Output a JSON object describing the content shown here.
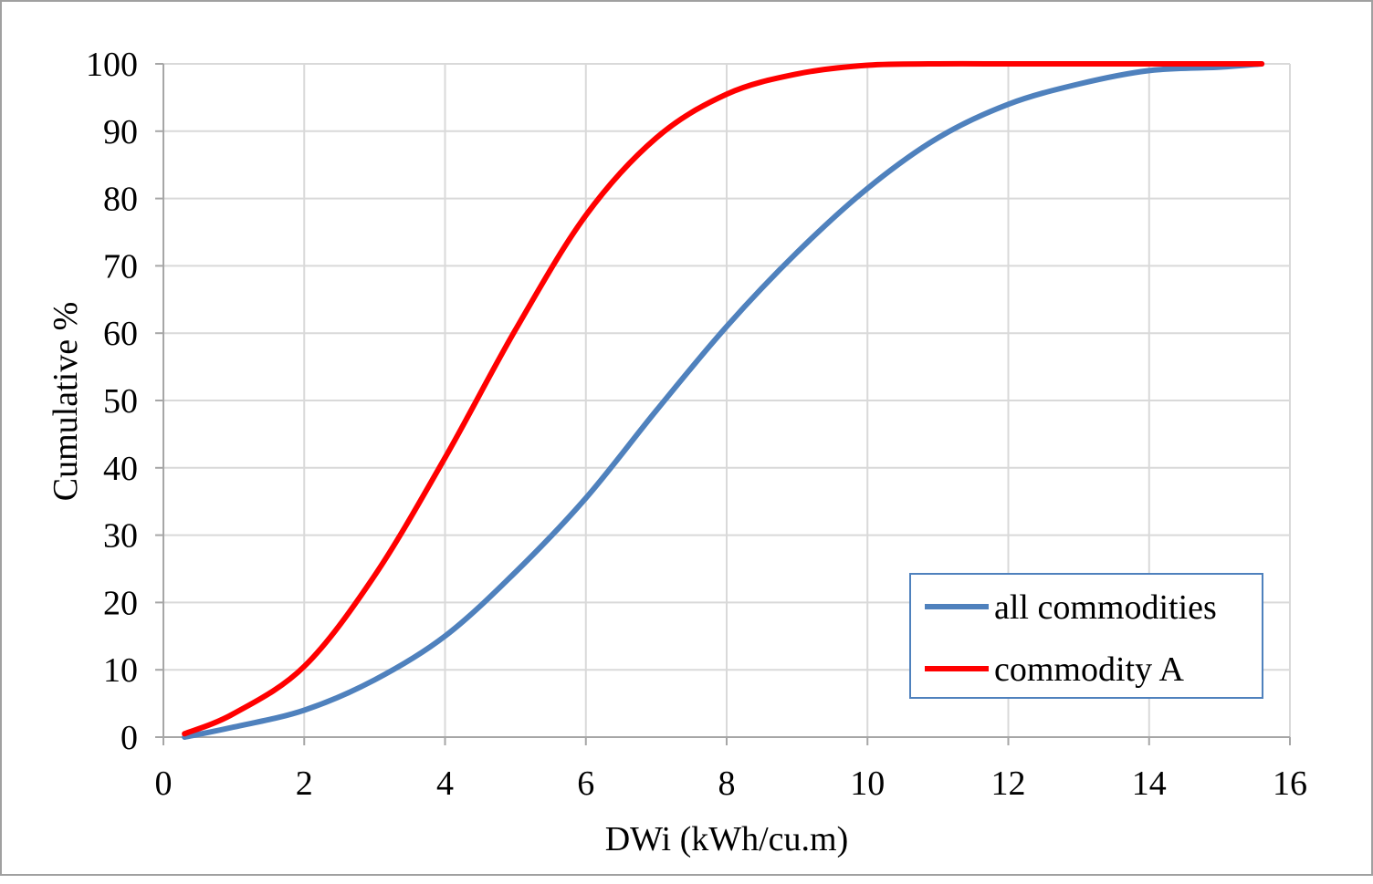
{
  "chart_data": {
    "type": "line",
    "title": "",
    "xlabel": "DWi (kWh/cu.m)",
    "ylabel": "Cumulative %",
    "xlim": [
      0,
      16
    ],
    "ylim": [
      0,
      100
    ],
    "x_ticks": [
      0,
      2,
      4,
      6,
      8,
      10,
      12,
      14,
      16
    ],
    "y_ticks": [
      0,
      10,
      20,
      30,
      40,
      50,
      60,
      70,
      80,
      90,
      100
    ],
    "x_tick_labels": [
      "0",
      "2",
      "4",
      "6",
      "8",
      "10",
      "12",
      "14",
      "16"
    ],
    "y_tick_labels": [
      "0",
      "10",
      "20",
      "30",
      "40",
      "50",
      "60",
      "70",
      "80",
      "90",
      "100"
    ],
    "grid": true,
    "legend_position": "bottom-right",
    "series": [
      {
        "name": "all commodities",
        "color": "#4f81bd",
        "x": [
          0.3,
          1,
          2,
          3,
          4,
          5,
          6,
          7,
          8,
          9,
          10,
          11,
          12,
          13,
          14,
          15,
          15.6
        ],
        "y": [
          0,
          1.5,
          4,
          8.5,
          15,
          24.5,
          35.5,
          48.5,
          61,
          72,
          81.5,
          89,
          94,
          97,
          99,
          99.5,
          100
        ]
      },
      {
        "name": "commodity A",
        "color": "#ff0000",
        "x": [
          0.3,
          1,
          2,
          3,
          4,
          5,
          6,
          7,
          8,
          9,
          10,
          11,
          12,
          13,
          14,
          15,
          15.6
        ],
        "y": [
          0.5,
          3.5,
          10.5,
          24,
          41.5,
          60.5,
          77.5,
          89,
          95.5,
          98.5,
          99.8,
          100,
          100,
          100,
          100,
          100,
          100
        ]
      }
    ]
  }
}
